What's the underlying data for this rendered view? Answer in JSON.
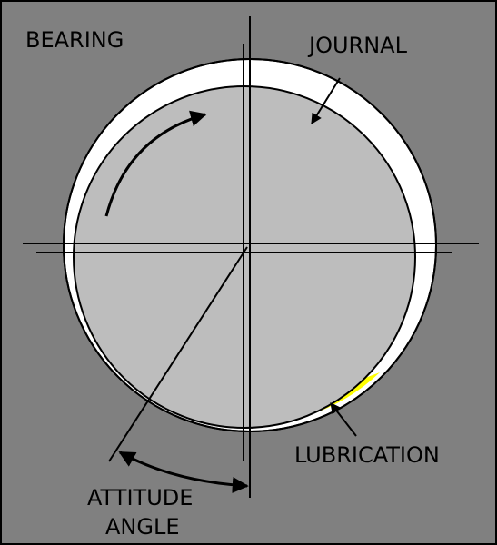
{
  "labels": {
    "bearing": "BEARING",
    "journal": "JOURNAL",
    "lubrication": "LUBRICATION",
    "attitude_angle_line1": "ATTITUDE",
    "attitude_angle_line2": "ANGLE"
  },
  "colors": {
    "bearing_housing": "#808080",
    "bearing_bore": "#ffffff",
    "journal": "#bdbdbd",
    "lubrication_film": "#ffff00",
    "lines": "#000000"
  }
}
